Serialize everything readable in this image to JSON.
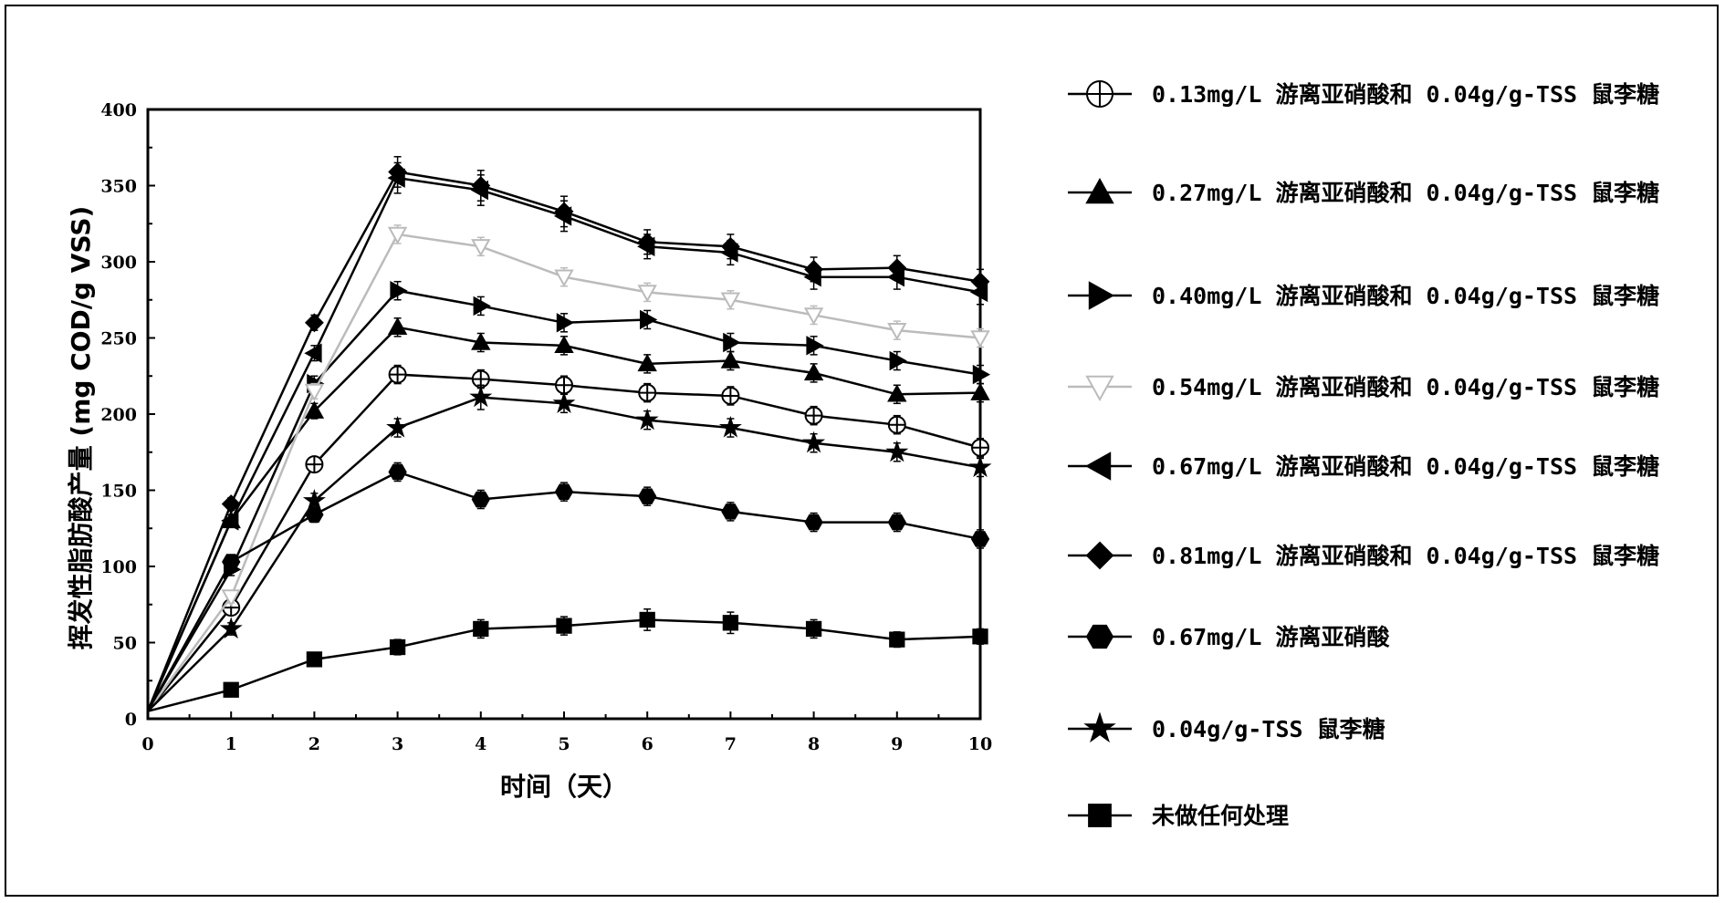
{
  "chart_data": {
    "type": "line",
    "xlabel": "时间（天）",
    "ylabel": "挥发性脂肪酸产量 (mg COD/g VSS)",
    "x": [
      0,
      1,
      2,
      3,
      4,
      5,
      6,
      7,
      8,
      9,
      10
    ],
    "xlim": [
      0,
      10
    ],
    "ylim": [
      0,
      400
    ],
    "x_ticks": [
      "0",
      "1",
      "2",
      "3",
      "4",
      "5",
      "6",
      "7",
      "8",
      "9",
      "10"
    ],
    "y_ticks": [
      "0",
      "50",
      "100",
      "150",
      "200",
      "250",
      "300",
      "350",
      "400"
    ],
    "grid": false,
    "legend_position": "right",
    "series": [
      {
        "name": "0.13mg/L 游离亚硝酸和 0.04g/g-TSS 鼠李糖",
        "marker": "circle-cross",
        "color": "#000000",
        "fill": "#ffffff",
        "values": [
          5,
          73,
          167,
          226,
          223,
          219,
          214,
          212,
          199,
          193,
          178
        ],
        "errors": [
          0,
          4,
          5,
          6,
          6,
          6,
          6,
          6,
          6,
          6,
          6
        ]
      },
      {
        "name": "0.27mg/L 游离亚硝酸和 0.04g/g-TSS 鼠李糖",
        "marker": "triangle-up",
        "color": "#000000",
        "fill": "#000000",
        "values": [
          5,
          130,
          202,
          257,
          247,
          245,
          233,
          235,
          227,
          213,
          214
        ],
        "errors": [
          0,
          4,
          5,
          6,
          6,
          6,
          6,
          6,
          6,
          6,
          6
        ]
      },
      {
        "name": "0.40mg/L 游离亚硝酸和 0.04g/g-TSS 鼠李糖",
        "marker": "triangle-right",
        "color": "#000000",
        "fill": "#000000",
        "values": [
          5,
          98,
          220,
          281,
          271,
          260,
          262,
          247,
          245,
          235,
          226
        ],
        "errors": [
          0,
          4,
          5,
          6,
          6,
          6,
          6,
          6,
          6,
          6,
          6
        ]
      },
      {
        "name": "0.54mg/L 游离亚硝酸和 0.04g/g-TSS 鼠李糖",
        "marker": "triangle-down",
        "color": "#bbbbbb",
        "fill": "#ffffff",
        "values": [
          5,
          80,
          215,
          318,
          310,
          290,
          280,
          275,
          265,
          255,
          250
        ],
        "errors": [
          0,
          4,
          5,
          6,
          6,
          6,
          6,
          6,
          6,
          6,
          6
        ]
      },
      {
        "name": "0.67mg/L 游离亚硝酸和 0.04g/g-TSS 鼠李糖",
        "marker": "triangle-left",
        "color": "#000000",
        "fill": "#000000",
        "values": [
          5,
          130,
          240,
          355,
          347,
          330,
          310,
          306,
          290,
          290,
          280
        ],
        "errors": [
          0,
          4,
          5,
          10,
          10,
          10,
          8,
          8,
          8,
          8,
          8
        ]
      },
      {
        "name": "0.81mg/L 游离亚硝酸和 0.04g/g-TSS 鼠李糖",
        "marker": "diamond",
        "color": "#000000",
        "fill": "#000000",
        "values": [
          5,
          141,
          260,
          359,
          350,
          333,
          313,
          310,
          295,
          296,
          287
        ],
        "errors": [
          0,
          4,
          5,
          10,
          10,
          10,
          8,
          8,
          8,
          8,
          8
        ]
      },
      {
        "name": "0.67mg/L 游离亚硝酸",
        "marker": "hexagon",
        "color": "#000000",
        "fill": "#000000",
        "values": [
          5,
          103,
          134,
          162,
          144,
          149,
          146,
          136,
          129,
          129,
          118
        ],
        "errors": [
          0,
          4,
          5,
          6,
          6,
          6,
          6,
          6,
          6,
          6,
          6
        ]
      },
      {
        "name": "0.04g/g-TSS 鼠李糖",
        "marker": "star",
        "color": "#000000",
        "fill": "#000000",
        "values": [
          5,
          59,
          143,
          191,
          211,
          207,
          196,
          191,
          181,
          175,
          165
        ],
        "errors": [
          0,
          4,
          5,
          6,
          8,
          6,
          6,
          6,
          6,
          6,
          6
        ]
      },
      {
        "name": "未做任何处理",
        "marker": "square",
        "color": "#000000",
        "fill": "#000000",
        "values": [
          5,
          19,
          39,
          47,
          59,
          61,
          65,
          63,
          59,
          52,
          54
        ],
        "errors": [
          0,
          3,
          4,
          5,
          6,
          6,
          7,
          7,
          6,
          5,
          5
        ]
      }
    ]
  }
}
